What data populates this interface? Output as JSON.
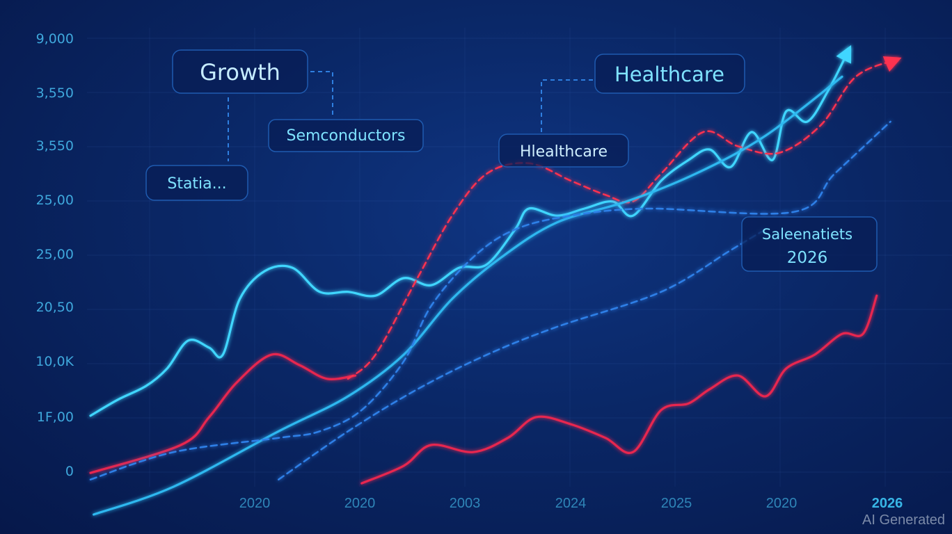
{
  "chart_data": {
    "type": "line",
    "title": "",
    "xlabel": "",
    "ylabel": "",
    "x_tick_labels": [
      "2020",
      "2020",
      "2003",
      "2024",
      "2025",
      "2020",
      "2026"
    ],
    "y_tick_labels": [
      "9,000",
      "3,550",
      "3,550",
      "25,00",
      "25,00",
      "20,50",
      "10,0K",
      "1F,00",
      "0"
    ],
    "xlim": [
      0,
      100
    ],
    "ylim": [
      0,
      100
    ],
    "grid": true,
    "series": [
      {
        "name": "cyan-volatile",
        "color": "#3fd6ff",
        "style": "solid",
        "arrow": true,
        "x": [
          0,
          3.4,
          6.9,
          9.5,
          12.1,
          14.7,
          16.4,
          18.5,
          21.6,
          25,
          28.4,
          31.9,
          35.3,
          38.8,
          42.2,
          45.7,
          49.1,
          52.6,
          54.3,
          57.8,
          61.2,
          64.7,
          67.2,
          70.7,
          74.1,
          76.7,
          79.3,
          81.9,
          84.5,
          86.2,
          88.8,
          91.4,
          94
        ],
        "y": [
          20.9,
          24.3,
          27.2,
          30.9,
          36.8,
          35.3,
          33.8,
          45.6,
          51.5,
          52.2,
          47.1,
          47.1,
          46.3,
          50,
          48.5,
          52.2,
          52.9,
          60.3,
          64.7,
          63.2,
          64.7,
          66.2,
          63.2,
          70.6,
          75,
          77.2,
          73.5,
          80.9,
          75,
          85.3,
          83.1,
          89.7,
          98.5
        ]
      },
      {
        "name": "red-solid-early",
        "color": "#e8264f",
        "style": "solid",
        "x": [
          0,
          11.2,
          14.7,
          18.1,
          22.4,
          25.9,
          29.3,
          32.8
        ],
        "y": [
          8.8,
          14.7,
          20.6,
          27.9,
          33.8,
          31.6,
          28.7,
          29.4
        ]
      },
      {
        "name": "red-solid-late",
        "color": "#e8264f",
        "style": "solid",
        "x": [
          33.6,
          38.8,
          42.2,
          47.4,
          51.7,
          55.2,
          59.5,
          63.8,
          67.2,
          70.7,
          74.1,
          76.7,
          80.2,
          83.6,
          86.2,
          89.7,
          93.1,
          95.7,
          97.4
        ],
        "y": [
          6.6,
          10.3,
          14.7,
          13.2,
          16.2,
          20.6,
          19.1,
          16.2,
          13.2,
          22.1,
          23.5,
          26.5,
          29.4,
          25,
          30.9,
          33.8,
          38.2,
          38.2,
          46.3
        ]
      },
      {
        "name": "red-dashed",
        "color": "#ff3050",
        "style": "dashed",
        "arrow": true,
        "x": [
          31.9,
          35.3,
          40.5,
          44.8,
          49.1,
          54.3,
          59.5,
          63.8,
          67.2,
          70.7,
          75.9,
          80.2,
          85.3,
          90.5,
          94.8,
          100
        ],
        "y": [
          28.7,
          33.8,
          50,
          63.2,
          72.1,
          74.3,
          70.6,
          67.6,
          66.2,
          72.1,
          80.9,
          77.9,
          76.5,
          82.4,
          92.6,
          96.3
        ]
      },
      {
        "name": "cyan-smooth",
        "color": "#2fb8f0",
        "style": "solid",
        "x": [
          0.4,
          10.3,
          23.3,
          31.9,
          38.8,
          44.8,
          50.9,
          57.8,
          66.4,
          75,
          83.6,
          93.1
        ],
        "y": [
          0,
          5.9,
          17.6,
          25,
          33.8,
          45.6,
          54.4,
          61.8,
          66.2,
          72.1,
          80.1,
          92.6
        ]
      },
      {
        "name": "blue-dashed-upper",
        "color": "#2f80e8",
        "style": "dashed",
        "x": [
          0,
          10.3,
          23.3,
          28.4,
          33.6,
          38.8,
          42.2,
          47.4,
          52.6,
          59.5,
          69,
          87.1,
          92.2,
          99.1
        ],
        "y": [
          7.4,
          13.2,
          16.2,
          17.6,
          22.1,
          32.4,
          44.1,
          54.4,
          60.3,
          63.2,
          64.7,
          64,
          72.1,
          83.1
        ]
      },
      {
        "name": "blue-dashed-lower",
        "color": "#2f80e8",
        "style": "dashed",
        "x": [
          23.3,
          31.9,
          40.5,
          49.1,
          57.8,
          70.7,
          79.3,
          83.6
        ],
        "y": [
          7.4,
          17.6,
          26.5,
          33.8,
          39.7,
          47.1,
          55.9,
          60.3
        ]
      }
    ],
    "annotations": {
      "growth": "Growth",
      "semiconductors": "Semconductors",
      "statia": "Statia...",
      "healthcare_top": "Healthcare",
      "healthcare_mid": "Hlealthcare",
      "saleenatiets_line1": "Saleenatiets",
      "saleenatiets_line2": "2026"
    }
  },
  "watermark": "AI Generated"
}
